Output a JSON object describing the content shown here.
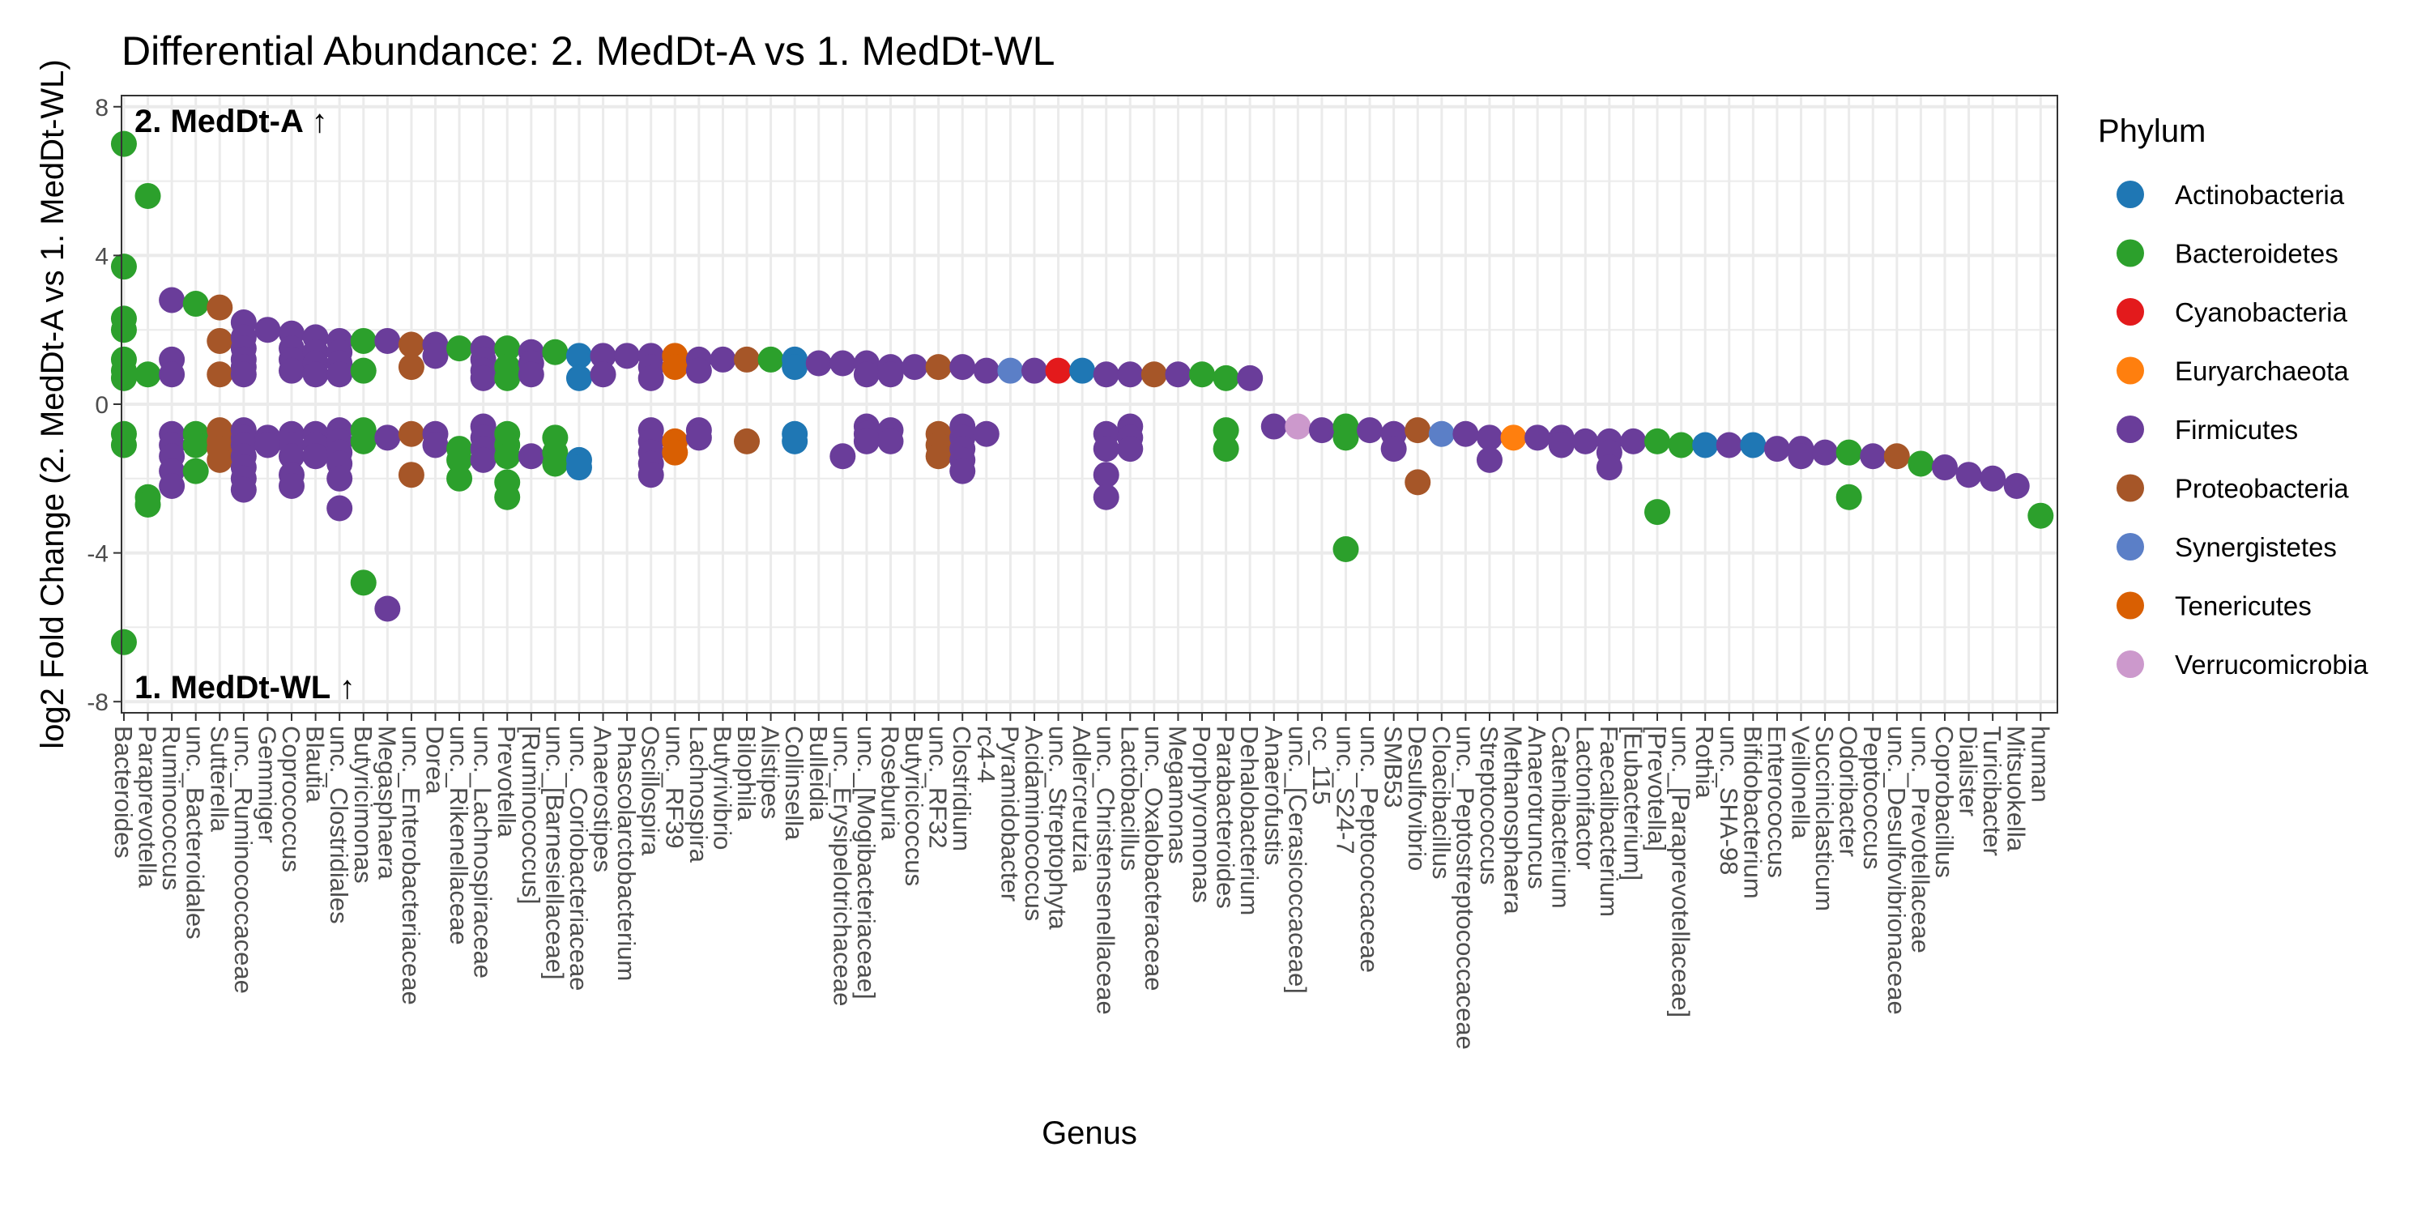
{
  "chart_data": {
    "type": "scatter",
    "title": "Differential Abundance: 2. MedDt-A vs 1. MedDt-WL",
    "xlabel": "Genus",
    "ylabel": "log2 Fold Change (2. MedDt-A vs 1. MedDt-WL)",
    "ylim": [
      -8.3,
      8.3
    ],
    "yticks": [
      -8,
      -4,
      0,
      4,
      8
    ],
    "grid": true,
    "legend_position": "right",
    "annotations": {
      "top": "2. MedDt-A ↑",
      "bottom": "1. MedDt-WL ↑"
    },
    "legend": {
      "title": "Phylum",
      "items": [
        {
          "name": "Actinobacteria",
          "color": "#1f77b4"
        },
        {
          "name": "Bacteroidetes",
          "color": "#2ca02c"
        },
        {
          "name": "Cyanobacteria",
          "color": "#e31a1c"
        },
        {
          "name": "Euryarchaeota",
          "color": "#ff7f0e"
        },
        {
          "name": "Firmicutes",
          "color": "#6a3d9a"
        },
        {
          "name": "Proteobacteria",
          "color": "#a65628"
        },
        {
          "name": "Synergistetes",
          "color": "#5b7fc7"
        },
        {
          "name": "Tenericutes",
          "color": "#d95f02"
        },
        {
          "name": "Verrucomicrobia",
          "color": "#cc99cc"
        }
      ]
    },
    "genera": [
      {
        "name": "Bacteroides",
        "phylum": "Bacteroidetes",
        "y": [
          7.0,
          3.7,
          2.3,
          2.0,
          1.2,
          0.9,
          0.7,
          -0.8,
          -1.1,
          -6.4
        ]
      },
      {
        "name": "Paraprevotella",
        "phylum": "Bacteroidetes",
        "y": [
          5.6,
          0.8,
          -2.5,
          -2.7
        ]
      },
      {
        "name": "Ruminococcus",
        "phylum": "Firmicutes",
        "y": [
          2.8,
          1.2,
          0.8,
          -0.8,
          -1.1,
          -1.4,
          -1.8,
          -2.2
        ]
      },
      {
        "name": "unc._Bacteroidales",
        "phylum": "Bacteroidetes",
        "y": [
          2.7,
          -0.8,
          -1.1,
          -1.8
        ]
      },
      {
        "name": "Sutterella",
        "phylum": "Proteobacteria",
        "y": [
          2.6,
          1.7,
          0.8,
          -0.7,
          -1.0,
          -1.2,
          -1.5
        ]
      },
      {
        "name": "unc._Ruminococcaceae",
        "phylum": "Firmicutes",
        "y": [
          2.2,
          1.8,
          1.5,
          1.2,
          1.0,
          0.8,
          -0.7,
          -0.9,
          -1.1,
          -1.4,
          -1.7,
          -2.0,
          -2.3
        ]
      },
      {
        "name": "Gemmiger",
        "phylum": "Firmicutes",
        "y": [
          2.0,
          -0.9,
          -1.1
        ]
      },
      {
        "name": "Coprococcus",
        "phylum": "Firmicutes",
        "y": [
          1.9,
          1.5,
          1.2,
          0.9,
          -0.8,
          -1.1,
          -1.4,
          -1.9,
          -2.2
        ]
      },
      {
        "name": "Blautia",
        "phylum": "Firmicutes",
        "y": [
          1.8,
          1.4,
          1.1,
          0.8,
          -0.8,
          -1.1,
          -1.4
        ]
      },
      {
        "name": "unc._Clostridiales",
        "phylum": "Firmicutes",
        "y": [
          1.7,
          1.4,
          1.1,
          0.8,
          -0.7,
          -1.0,
          -1.3,
          -1.6,
          -2.0,
          -2.8
        ]
      },
      {
        "name": "Butyricimonas",
        "phylum": "Bacteroidetes",
        "y": [
          1.7,
          0.9,
          -0.7,
          -1.0,
          -4.8
        ]
      },
      {
        "name": "Megasphaera",
        "phylum": "Firmicutes",
        "y": [
          1.7,
          -0.9,
          -5.5
        ]
      },
      {
        "name": "unc._Enterobacteriaceae",
        "phylum": "Proteobacteria",
        "y": [
          1.6,
          1.0,
          -0.8,
          -1.9
        ]
      },
      {
        "name": "Dorea",
        "phylum": "Firmicutes",
        "y": [
          1.6,
          1.3,
          -0.8,
          -1.1
        ]
      },
      {
        "name": "unc._Rikenellaceae",
        "phylum": "Bacteroidetes",
        "y": [
          1.5,
          -1.2,
          -1.5,
          -2.0
        ]
      },
      {
        "name": "unc._Lachnospiraceae",
        "phylum": "Firmicutes",
        "y": [
          1.5,
          1.2,
          0.9,
          0.7,
          -0.6,
          -0.9,
          -1.2,
          -1.5
        ]
      },
      {
        "name": "Prevotella",
        "phylum": "Bacteroidetes",
        "y": [
          1.5,
          1.0,
          0.7,
          -0.8,
          -1.1,
          -1.4,
          -2.1,
          -2.5
        ]
      },
      {
        "name": "[Ruminococcus]",
        "phylum": "Firmicutes",
        "y": [
          1.4,
          1.1,
          0.8,
          -1.4
        ]
      },
      {
        "name": "unc._[Barnesiellaceae]",
        "phylum": "Bacteroidetes",
        "y": [
          1.4,
          -0.9,
          -1.3,
          -1.6
        ]
      },
      {
        "name": "unc._Coriobacteriaceae",
        "phylum": "Actinobacteria",
        "y": [
          1.3,
          0.7,
          -1.5,
          -1.7
        ]
      },
      {
        "name": "Anaerostipes",
        "phylum": "Firmicutes",
        "y": [
          1.3,
          0.8
        ]
      },
      {
        "name": "Phascolarctobacterium",
        "phylum": "Firmicutes",
        "y": [
          1.3
        ]
      },
      {
        "name": "Oscillospira",
        "phylum": "Firmicutes",
        "y": [
          1.3,
          1.0,
          0.7,
          -0.7,
          -1.0,
          -1.3,
          -1.6,
          -1.9
        ]
      },
      {
        "name": "unc._RF39",
        "phylum": "Tenericutes",
        "y": [
          1.3,
          1.0,
          -1.0,
          -1.3
        ]
      },
      {
        "name": "Lachnospira",
        "phylum": "Firmicutes",
        "y": [
          1.2,
          0.9,
          -0.7,
          -0.9
        ]
      },
      {
        "name": "Butyrivibrio",
        "phylum": "Firmicutes",
        "y": [
          1.2
        ]
      },
      {
        "name": "Bilophila",
        "phylum": "Proteobacteria",
        "y": [
          1.2,
          -1.0
        ]
      },
      {
        "name": "Alistipes",
        "phylum": "Bacteroidetes",
        "y": [
          1.2
        ]
      },
      {
        "name": "Collinsella",
        "phylum": "Actinobacteria",
        "y": [
          1.2,
          1.0,
          -0.8,
          -1.0
        ]
      },
      {
        "name": "Bulleidia",
        "phylum": "Firmicutes",
        "y": [
          1.1
        ]
      },
      {
        "name": "unc._Erysipelotrichaceae",
        "phylum": "Firmicutes",
        "y": [
          1.1,
          -1.4
        ]
      },
      {
        "name": "unc._[Mogibacteriaceae]",
        "phylum": "Firmicutes",
        "y": [
          1.1,
          0.8,
          -0.6,
          -0.8,
          -1.0
        ]
      },
      {
        "name": "Roseburia",
        "phylum": "Firmicutes",
        "y": [
          1.0,
          0.8,
          -0.7,
          -1.0
        ]
      },
      {
        "name": "Butyricicoccus",
        "phylum": "Firmicutes",
        "y": [
          1.0
        ]
      },
      {
        "name": "unc._RF32",
        "phylum": "Proteobacteria",
        "y": [
          1.0,
          -0.8,
          -1.1,
          -1.4
        ]
      },
      {
        "name": "Clostridium",
        "phylum": "Firmicutes",
        "y": [
          1.0,
          -0.6,
          -0.9,
          -1.2,
          -1.5,
          -1.8
        ]
      },
      {
        "name": "rc4-4",
        "phylum": "Firmicutes",
        "y": [
          0.9,
          -0.8
        ]
      },
      {
        "name": "Pyramidobacter",
        "phylum": "Synergistetes",
        "y": [
          0.9
        ]
      },
      {
        "name": "Acidaminococcus",
        "phylum": "Firmicutes",
        "y": [
          0.9
        ]
      },
      {
        "name": "unc._Streptophyta",
        "phylum": "Cyanobacteria",
        "y": [
          0.9
        ]
      },
      {
        "name": "Adlercreutzia",
        "phylum": "Actinobacteria",
        "y": [
          0.9
        ]
      },
      {
        "name": "unc._Christensenellaceae",
        "phylum": "Firmicutes",
        "y": [
          0.8,
          -0.8,
          -1.2,
          -1.9,
          -2.5
        ]
      },
      {
        "name": "Lactobacillus",
        "phylum": "Firmicutes",
        "y": [
          0.8,
          -0.6,
          -0.9,
          -1.2
        ]
      },
      {
        "name": "unc._Oxalobacteraceae",
        "phylum": "Proteobacteria",
        "y": [
          0.8
        ]
      },
      {
        "name": "Megamonas",
        "phylum": "Firmicutes",
        "y": [
          0.8
        ]
      },
      {
        "name": "Porphyromonas",
        "phylum": "Bacteroidetes",
        "y": [
          0.8
        ]
      },
      {
        "name": "Parabacteroides",
        "phylum": "Bacteroidetes",
        "y": [
          0.7,
          -0.7,
          -1.2
        ]
      },
      {
        "name": "Dehalobacterium",
        "phylum": "Firmicutes",
        "y": [
          0.7
        ]
      },
      {
        "name": "Anaerofustis",
        "phylum": "Firmicutes",
        "y": [
          -0.6
        ]
      },
      {
        "name": "unc._[Cerasicoccaceae]",
        "phylum": "Verrucomicrobia",
        "y": [
          -0.6
        ]
      },
      {
        "name": "cc_115",
        "phylum": "Firmicutes",
        "y": [
          -0.7
        ]
      },
      {
        "name": "unc._S24-7",
        "phylum": "Bacteroidetes",
        "y": [
          -0.6,
          -0.9,
          -3.9
        ]
      },
      {
        "name": "unc._Peptococcaceae",
        "phylum": "Firmicutes",
        "y": [
          -0.7
        ]
      },
      {
        "name": "SMB53",
        "phylum": "Firmicutes",
        "y": [
          -0.8,
          -1.2
        ]
      },
      {
        "name": "Desulfovibrio",
        "phylum": "Proteobacteria",
        "y": [
          -0.7,
          -2.1
        ]
      },
      {
        "name": "Cloacibacillus",
        "phylum": "Synergistetes",
        "y": [
          -0.8
        ]
      },
      {
        "name": "unc._Peptostreptococcaceae",
        "phylum": "Firmicutes",
        "y": [
          -0.8
        ]
      },
      {
        "name": "Streptococcus",
        "phylum": "Firmicutes",
        "y": [
          -0.9,
          -1.5
        ]
      },
      {
        "name": "Methanosphaera",
        "phylum": "Euryarchaeota",
        "y": [
          -0.9
        ]
      },
      {
        "name": "Anaerotruncus",
        "phylum": "Firmicutes",
        "y": [
          -0.9
        ]
      },
      {
        "name": "Catenibacterium",
        "phylum": "Firmicutes",
        "y": [
          -0.9,
          -1.1
        ]
      },
      {
        "name": "Lactonifactor",
        "phylum": "Firmicutes",
        "y": [
          -1.0
        ]
      },
      {
        "name": "Faecalibacterium",
        "phylum": "Firmicutes",
        "y": [
          -1.0,
          -1.3,
          -1.7
        ]
      },
      {
        "name": "[Eubacterium]",
        "phylum": "Firmicutes",
        "y": [
          -1.0
        ]
      },
      {
        "name": "[Prevotella]",
        "phylum": "Bacteroidetes",
        "y": [
          -1.0,
          -2.9
        ]
      },
      {
        "name": "unc._[Paraprevotellaceae]",
        "phylum": "Bacteroidetes",
        "y": [
          -1.1
        ]
      },
      {
        "name": "Rothia",
        "phylum": "Actinobacteria",
        "y": [
          -1.1
        ]
      },
      {
        "name": "unc._SHA-98",
        "phylum": "Firmicutes",
        "y": [
          -1.1
        ]
      },
      {
        "name": "Bifidobacterium",
        "phylum": "Actinobacteria",
        "y": [
          -1.1
        ]
      },
      {
        "name": "Enterococcus",
        "phylum": "Firmicutes",
        "y": [
          -1.2
        ]
      },
      {
        "name": "Veillonella",
        "phylum": "Firmicutes",
        "y": [
          -1.2,
          -1.4
        ]
      },
      {
        "name": "Succiniclasticum",
        "phylum": "Firmicutes",
        "y": [
          -1.3
        ]
      },
      {
        "name": "Odoribacter",
        "phylum": "Bacteroidetes",
        "y": [
          -1.3,
          -2.5
        ]
      },
      {
        "name": "Peptococcus",
        "phylum": "Firmicutes",
        "y": [
          -1.4
        ]
      },
      {
        "name": "unc._Desulfovibrionaceae",
        "phylum": "Proteobacteria",
        "y": [
          -1.4
        ]
      },
      {
        "name": "unc._Prevotellaceae",
        "phylum": "Bacteroidetes",
        "y": [
          -1.6
        ]
      },
      {
        "name": "Coprobacillus",
        "phylum": "Firmicutes",
        "y": [
          -1.7
        ]
      },
      {
        "name": "Dialister",
        "phylum": "Firmicutes",
        "y": [
          -1.9
        ]
      },
      {
        "name": "Turicibacter",
        "phylum": "Firmicutes",
        "y": [
          -2.0
        ]
      },
      {
        "name": "Mitsuokella",
        "phylum": "Firmicutes",
        "y": [
          -2.2
        ]
      },
      {
        "name": "human",
        "phylum": "Bacteroidetes",
        "y": [
          -3.0
        ]
      }
    ]
  }
}
